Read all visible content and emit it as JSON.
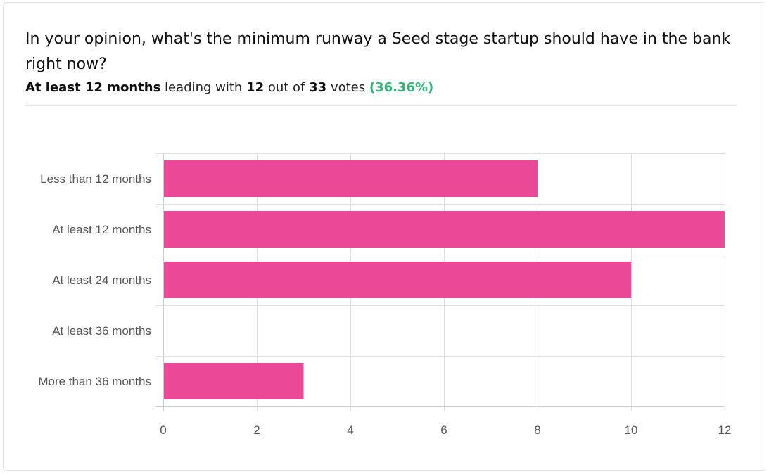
{
  "poll": {
    "question": "In your opinion, what's the minimum runway a Seed stage startup should have in the bank right now?",
    "leader": "At least 12 months",
    "leading_text": "leading with",
    "leader_votes": "12",
    "out_of_text": "out of",
    "total_votes": "33",
    "votes_text": "votes",
    "percent": "(36.36%)"
  },
  "colors": {
    "bar": "#eb4898",
    "percent": "#2bb673",
    "grid": "#dddddd",
    "axis": "#cccccc",
    "label": "#555555"
  },
  "chart_data": {
    "type": "bar",
    "orientation": "horizontal",
    "categories": [
      "Less than 12 months",
      "At least 12 months",
      "At least 24 months",
      "At least 36 months",
      "More than 36 months"
    ],
    "values": [
      8,
      12,
      10,
      0,
      3
    ],
    "xlim": [
      0,
      12
    ],
    "xticks": [
      0,
      2,
      4,
      6,
      8,
      10,
      12
    ],
    "grid": true,
    "legend": "none"
  }
}
